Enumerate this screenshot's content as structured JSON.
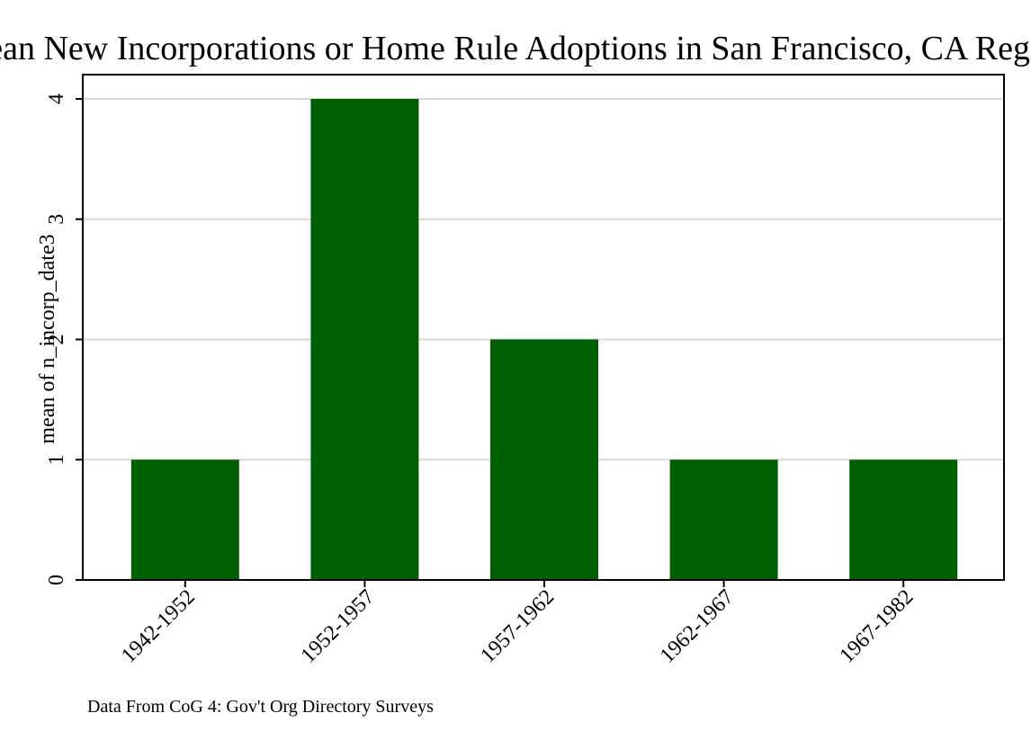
{
  "chart_data": {
    "type": "bar",
    "title": "Mean New Incorporations or Home Rule Adoptions in San Francisco, CA Region",
    "categories": [
      "1942-1952",
      "1952-1957",
      "1957-1962",
      "1962-1967",
      "1967-1982"
    ],
    "values": [
      1,
      4,
      2,
      1,
      1
    ],
    "xlabel": "",
    "ylabel": "mean of n_incorp_date3",
    "ylim": [
      0,
      4
    ],
    "yticks": [
      0,
      1,
      2,
      3,
      4
    ],
    "grid": true,
    "bar_color": "#005f00",
    "grid_color": "#d9d9d9",
    "note": "Data From CoG 4: Gov't Org Directory Surveys"
  }
}
